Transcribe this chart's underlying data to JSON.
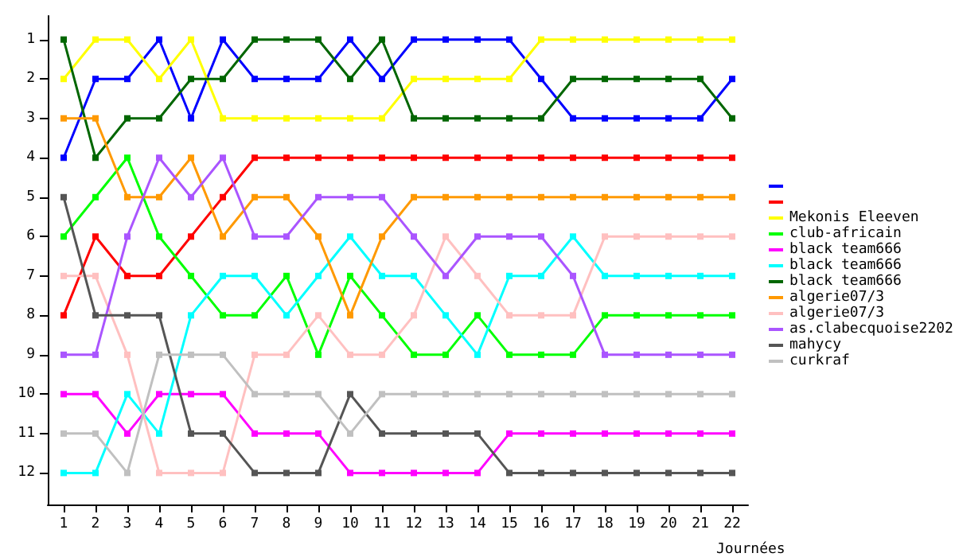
{
  "chart_data": {
    "type": "line",
    "xlabel": "Journées",
    "x": [
      1,
      2,
      3,
      4,
      5,
      6,
      7,
      8,
      9,
      10,
      11,
      12,
      13,
      14,
      15,
      16,
      17,
      18,
      19,
      20,
      21,
      22
    ],
    "xlim": [
      0.5,
      22.5
    ],
    "xticks": [
      1,
      2,
      3,
      4,
      5,
      6,
      7,
      8,
      9,
      10,
      11,
      12,
      13,
      14,
      15,
      16,
      17,
      18,
      19,
      20,
      21,
      22
    ],
    "ylim": [
      12.8,
      0.4
    ],
    "yticks": [
      1,
      2,
      3,
      4,
      5,
      6,
      7,
      8,
      9,
      10,
      11,
      12
    ],
    "grid": false,
    "legend": "right",
    "marker": "square",
    "line_style": "solid",
    "series": [
      {
        "color": "#0000ff",
        "values": [
          4,
          2,
          2,
          1,
          3,
          1,
          2,
          2,
          2,
          1,
          2,
          1,
          1,
          1,
          1,
          2,
          3,
          3,
          3,
          3,
          3,
          2
        ]
      },
      {
        "color": "#ff0000",
        "values": [
          8,
          6,
          7,
          7,
          6,
          5,
          4,
          4,
          4,
          4,
          4,
          4,
          4,
          4,
          4,
          4,
          4,
          4,
          4,
          4,
          4,
          4
        ]
      },
      {
        "name": "Mekonis Eleeven",
        "color": "#ffff00",
        "values": [
          2,
          1,
          1,
          2,
          1,
          3,
          3,
          3,
          3,
          3,
          3,
          2,
          2,
          2,
          2,
          1,
          1,
          1,
          1,
          1,
          1,
          1
        ]
      },
      {
        "name": "club-africain",
        "color": "#00ff00",
        "values": [
          6,
          5,
          4,
          6,
          7,
          8,
          8,
          7,
          9,
          7,
          8,
          9,
          9,
          8,
          9,
          9,
          9,
          8,
          8,
          8,
          8,
          8
        ]
      },
      {
        "name": "black team666",
        "color": "#ff00ff",
        "values": [
          10,
          10,
          11,
          10,
          10,
          10,
          11,
          11,
          11,
          12,
          12,
          12,
          12,
          12,
          11,
          11,
          11,
          11,
          11,
          11,
          11,
          11
        ]
      },
      {
        "name": "black team666",
        "color": "#00ffff",
        "values": [
          12,
          12,
          10,
          11,
          8,
          7,
          7,
          8,
          7,
          6,
          7,
          7,
          8,
          9,
          7,
          7,
          6,
          7,
          7,
          7,
          7,
          7
        ]
      },
      {
        "name": "black team666",
        "color": "#006600",
        "values": [
          1,
          4,
          3,
          3,
          2,
          2,
          1,
          1,
          1,
          2,
          1,
          3,
          3,
          3,
          3,
          3,
          2,
          2,
          2,
          2,
          2,
          3
        ]
      },
      {
        "name": "algerie07/3",
        "color": "#ff9900",
        "values": [
          3,
          3,
          5,
          5,
          4,
          6,
          5,
          5,
          6,
          8,
          6,
          5,
          5,
          5,
          5,
          5,
          5,
          5,
          5,
          5,
          5,
          5
        ]
      },
      {
        "name": "algerie07/3",
        "color": "#ffc0c0",
        "values": [
          7,
          7,
          9,
          12,
          12,
          12,
          9,
          9,
          8,
          9,
          9,
          8,
          6,
          7,
          8,
          8,
          8,
          6,
          6,
          6,
          6,
          6
        ]
      },
      {
        "name": "as.clabecquoise2202",
        "color": "#aa55ff",
        "values": [
          9,
          9,
          6,
          4,
          5,
          4,
          6,
          6,
          5,
          5,
          5,
          6,
          7,
          6,
          6,
          6,
          7,
          9,
          9,
          9,
          9,
          9
        ]
      },
      {
        "name": "mahycy",
        "color": "#555555",
        "values": [
          5,
          8,
          8,
          8,
          11,
          11,
          12,
          12,
          12,
          10,
          11,
          11,
          11,
          11,
          12,
          12,
          12,
          12,
          12,
          12,
          12,
          12
        ]
      },
      {
        "name": "curkraf",
        "color": "#c0c0c0",
        "values": [
          11,
          11,
          12,
          9,
          9,
          9,
          10,
          10,
          10,
          11,
          10,
          10,
          10,
          10,
          10,
          10,
          10,
          10,
          10,
          10,
          10,
          10
        ]
      }
    ]
  }
}
